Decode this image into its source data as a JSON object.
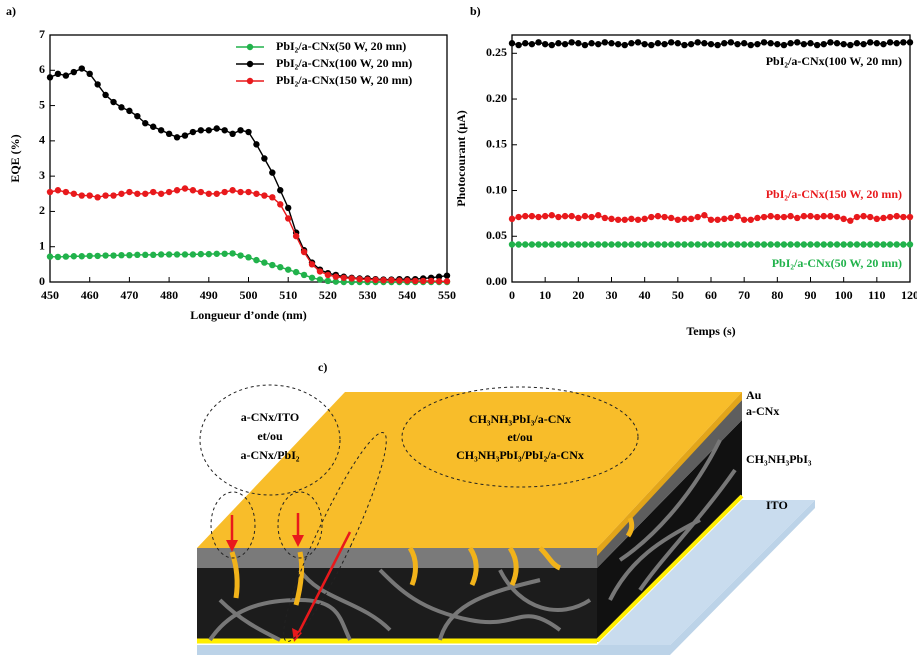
{
  "panels": [
    "a)",
    "b)",
    "c)"
  ],
  "chart_data": [
    {
      "type": "line",
      "xlabel": "Longueur d’onde (nm)",
      "ylabel": "EQE (%)",
      "xlim": [
        450,
        550
      ],
      "ylim": [
        0,
        7
      ],
      "xticks": [
        450,
        460,
        470,
        480,
        490,
        500,
        510,
        520,
        530,
        540,
        550
      ],
      "yticks": [
        0,
        1,
        2,
        3,
        4,
        5,
        6,
        7
      ],
      "legend": "upper right",
      "x": [
        450,
        452,
        454,
        456,
        458,
        460,
        462,
        464,
        466,
        468,
        470,
        472,
        474,
        476,
        478,
        480,
        482,
        484,
        486,
        488,
        490,
        492,
        494,
        496,
        498,
        500,
        502,
        504,
        506,
        508,
        510,
        512,
        514,
        516,
        518,
        520,
        522,
        524,
        526,
        528,
        530,
        532,
        534,
        536,
        538,
        540,
        542,
        544,
        546,
        548,
        550
      ],
      "series": [
        {
          "name": "PbI₂/a-CNx(50 W, 20 mn)",
          "color": "#21b24b",
          "values": [
            0.72,
            0.71,
            0.72,
            0.73,
            0.73,
            0.74,
            0.74,
            0.75,
            0.75,
            0.76,
            0.76,
            0.77,
            0.77,
            0.77,
            0.78,
            0.78,
            0.78,
            0.78,
            0.78,
            0.79,
            0.79,
            0.8,
            0.8,
            0.81,
            0.75,
            0.7,
            0.62,
            0.55,
            0.48,
            0.42,
            0.35,
            0.28,
            0.2,
            0.12,
            0.07,
            0.03,
            0.01,
            0,
            0,
            0,
            0,
            0,
            0,
            0,
            0,
            0,
            0,
            0,
            0,
            0,
            0
          ]
        },
        {
          "name": "PbI₂/a-CNx(100 W, 20 mn)",
          "color": "#000000",
          "values": [
            5.8,
            5.9,
            5.85,
            5.95,
            6.05,
            5.9,
            5.6,
            5.3,
            5.1,
            4.95,
            4.85,
            4.7,
            4.5,
            4.4,
            4.3,
            4.2,
            4.1,
            4.15,
            4.25,
            4.3,
            4.3,
            4.35,
            4.3,
            4.2,
            4.3,
            4.25,
            3.9,
            3.5,
            3.1,
            2.6,
            2.1,
            1.4,
            0.9,
            0.55,
            0.35,
            0.25,
            0.2,
            0.15,
            0.12,
            0.1,
            0.1,
            0.08,
            0.07,
            0.07,
            0.08,
            0.08,
            0.08,
            0.1,
            0.12,
            0.15,
            0.18
          ]
        },
        {
          "name": "PbI₂/a-CNx(150 W, 20 mn)",
          "color": "#e8191c",
          "values": [
            2.55,
            2.6,
            2.55,
            2.5,
            2.45,
            2.45,
            2.4,
            2.45,
            2.45,
            2.5,
            2.55,
            2.5,
            2.5,
            2.55,
            2.5,
            2.55,
            2.6,
            2.65,
            2.6,
            2.55,
            2.5,
            2.5,
            2.55,
            2.6,
            2.55,
            2.55,
            2.5,
            2.45,
            2.4,
            2.2,
            1.8,
            1.3,
            0.85,
            0.5,
            0.3,
            0.2,
            0.15,
            0.12,
            0.1,
            0.08,
            0.07,
            0.06,
            0.05,
            0.05,
            0.04,
            0.04,
            0.03,
            0.03,
            0.03,
            0.02,
            0.02
          ]
        }
      ]
    },
    {
      "type": "line",
      "xlabel": "Temps (s)",
      "ylabel": "Photocourant (µA)",
      "xlim": [
        0,
        120
      ],
      "ylim": [
        0,
        0.27
      ],
      "xticks": [
        0,
        10,
        20,
        30,
        40,
        50,
        60,
        70,
        80,
        90,
        100,
        110,
        120
      ],
      "yticks": [
        {
          "value": 0,
          "label": "0.00"
        },
        0.05,
        {
          "value": 0.1,
          "label": "0.10"
        },
        0.15,
        {
          "value": 0.2,
          "label": "0.20"
        },
        0.25
      ],
      "legend": "inline",
      "x": [
        0,
        2,
        4,
        6,
        8,
        10,
        12,
        14,
        16,
        18,
        20,
        22,
        24,
        26,
        28,
        30,
        32,
        34,
        36,
        38,
        40,
        42,
        44,
        46,
        48,
        50,
        52,
        54,
        56,
        58,
        60,
        62,
        64,
        66,
        68,
        70,
        72,
        74,
        76,
        78,
        80,
        82,
        84,
        86,
        88,
        90,
        92,
        94,
        96,
        98,
        100,
        102,
        104,
        106,
        108,
        110,
        112,
        114,
        116,
        118,
        120
      ],
      "series": [
        {
          "name": "PbI₂/a-CNx(100 W, 20 mn)",
          "color": "#000000",
          "values": [
            0.261,
            0.259,
            0.261,
            0.26,
            0.262,
            0.26,
            0.259,
            0.261,
            0.26,
            0.262,
            0.261,
            0.259,
            0.261,
            0.26,
            0.262,
            0.261,
            0.26,
            0.259,
            0.261,
            0.262,
            0.26,
            0.259,
            0.261,
            0.26,
            0.262,
            0.261,
            0.259,
            0.26,
            0.262,
            0.261,
            0.26,
            0.259,
            0.261,
            0.262,
            0.26,
            0.261,
            0.259,
            0.26,
            0.262,
            0.261,
            0.26,
            0.259,
            0.261,
            0.262,
            0.26,
            0.261,
            0.259,
            0.26,
            0.262,
            0.261,
            0.26,
            0.259,
            0.261,
            0.26,
            0.262,
            0.261,
            0.26,
            0.262,
            0.261,
            0.262,
            0.262
          ]
        },
        {
          "name": "PbI₂/a-CNx(150 W, 20 mn)",
          "color": "#e8191c",
          "values": [
            0.069,
            0.071,
            0.072,
            0.072,
            0.071,
            0.072,
            0.073,
            0.071,
            0.072,
            0.072,
            0.07,
            0.072,
            0.071,
            0.073,
            0.07,
            0.069,
            0.068,
            0.068,
            0.069,
            0.068,
            0.069,
            0.071,
            0.072,
            0.071,
            0.07,
            0.068,
            0.069,
            0.069,
            0.071,
            0.073,
            0.068,
            0.068,
            0.069,
            0.07,
            0.072,
            0.068,
            0.068,
            0.07,
            0.071,
            0.072,
            0.071,
            0.071,
            0.072,
            0.07,
            0.072,
            0.072,
            0.071,
            0.072,
            0.072,
            0.071,
            0.069,
            0.067,
            0.071,
            0.072,
            0.071,
            0.069,
            0.07,
            0.071,
            0.072,
            0.071,
            0.071
          ]
        },
        {
          "name": "PbI₂/a-CNx(50 W, 20 mn)",
          "color": "#21b24b",
          "values": [
            0.041,
            0.041,
            0.041,
            0.041,
            0.041,
            0.041,
            0.041,
            0.041,
            0.041,
            0.041,
            0.041,
            0.041,
            0.041,
            0.041,
            0.041,
            0.041,
            0.041,
            0.041,
            0.041,
            0.041,
            0.041,
            0.041,
            0.041,
            0.041,
            0.041,
            0.041,
            0.041,
            0.041,
            0.041,
            0.041,
            0.041,
            0.041,
            0.041,
            0.041,
            0.041,
            0.041,
            0.041,
            0.041,
            0.041,
            0.041,
            0.041,
            0.041,
            0.041,
            0.041,
            0.041,
            0.041,
            0.041,
            0.041,
            0.041,
            0.041,
            0.041,
            0.041,
            0.041,
            0.041,
            0.041,
            0.041,
            0.041,
            0.041,
            0.041,
            0.041,
            0.041
          ]
        }
      ]
    }
  ],
  "diagram": {
    "layers": [
      "Au",
      "a-CNx",
      "CH₃NH₃PbI₃",
      "ITO"
    ],
    "bubbles": [
      [
        "a-CNx/ITO",
        "et/ou",
        "a-CNx/PbI₂"
      ],
      [
        "CH₃NH₃PbI₃/a-CNx",
        "et/ou",
        "CH₃NH₃PbI₃/PbI₂/a-CNx"
      ]
    ]
  }
}
